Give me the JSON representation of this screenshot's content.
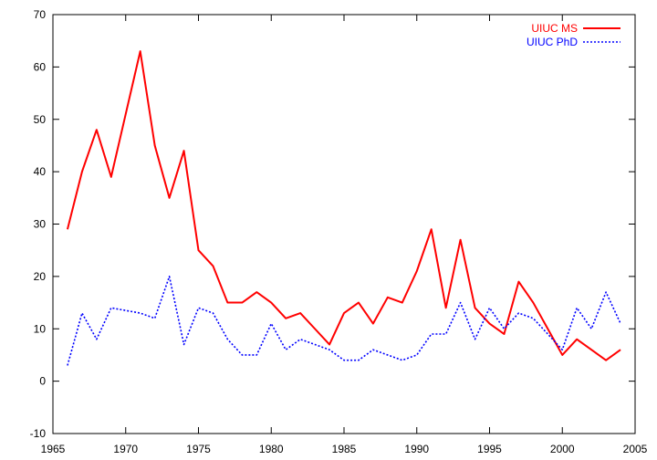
{
  "chart_data": {
    "type": "line",
    "title": "",
    "xlabel": "",
    "ylabel": "",
    "xlim": [
      1965,
      2005
    ],
    "ylim": [
      -10,
      70
    ],
    "xticks": [
      1965,
      1970,
      1975,
      1980,
      1985,
      1990,
      1995,
      2000,
      2005
    ],
    "yticks": [
      -10,
      0,
      10,
      20,
      30,
      40,
      50,
      60,
      70
    ],
    "grid": false,
    "legend_position": "top-right",
    "x": [
      1966,
      1967,
      1968,
      1969,
      1970,
      1971,
      1972,
      1973,
      1974,
      1975,
      1976,
      1977,
      1978,
      1979,
      1980,
      1981,
      1982,
      1983,
      1984,
      1985,
      1986,
      1987,
      1988,
      1989,
      1990,
      1991,
      1992,
      1993,
      1994,
      1995,
      1996,
      1997,
      1998,
      1999,
      2000,
      2001,
      2002,
      2003,
      2004
    ],
    "series": [
      {
        "name": "UIUC MS",
        "color": "#ff0000",
        "style": "solid",
        "values": [
          29,
          40,
          48,
          39,
          51,
          63,
          45,
          35,
          44,
          25,
          22,
          15,
          15,
          17,
          15,
          12,
          13,
          10,
          7,
          13,
          15,
          11,
          16,
          15,
          21,
          29,
          14,
          27,
          14,
          11,
          9,
          19,
          15,
          10,
          5,
          8,
          6,
          4,
          6
        ]
      },
      {
        "name": "UIUC PhD",
        "color": "#0000ff",
        "style": "dotted",
        "values": [
          3,
          13,
          8,
          14,
          13.5,
          13,
          12,
          20,
          7,
          14,
          13,
          8,
          5,
          5,
          11,
          6,
          8,
          7,
          6,
          4,
          4,
          6,
          5,
          4,
          5,
          9,
          9,
          15,
          8,
          14,
          10,
          13,
          12,
          9,
          6,
          14,
          10,
          17,
          11
        ]
      }
    ]
  }
}
